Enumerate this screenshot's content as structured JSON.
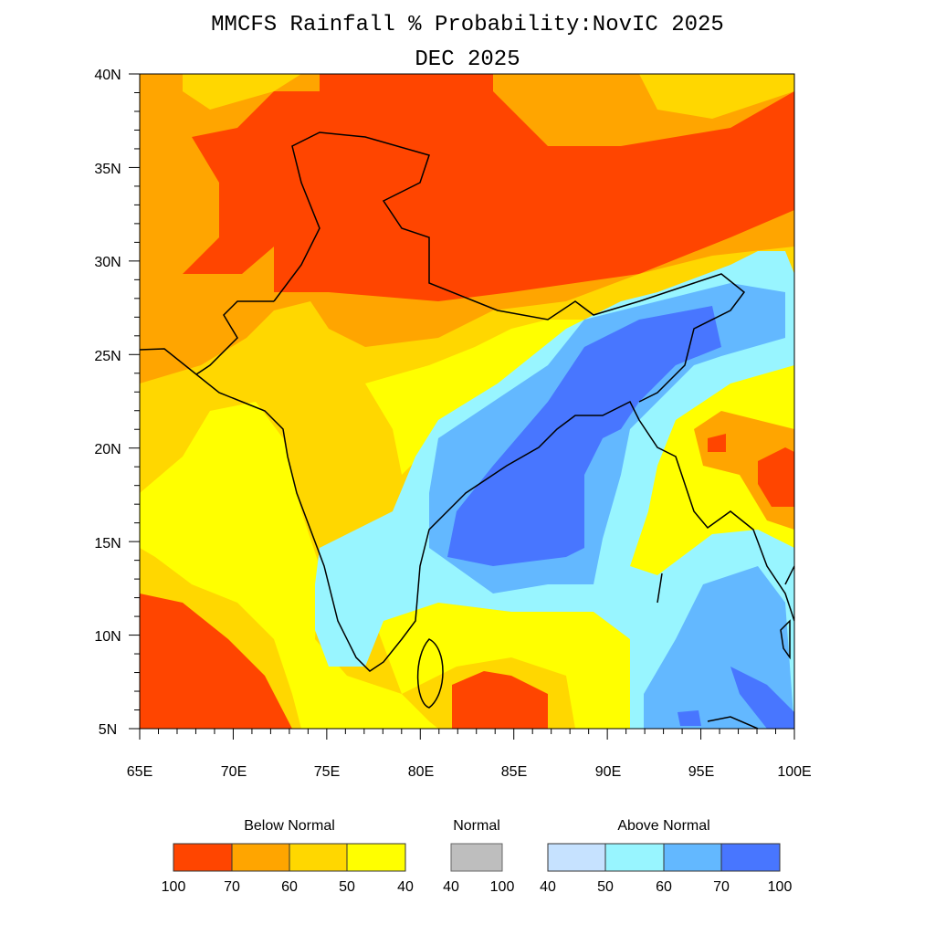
{
  "title": "MMCFS Rainfall % Probability:NovIC 2025",
  "subtitle": "DEC 2025",
  "map": {
    "region": "India and surroundings",
    "lon_range": [
      65,
      100
    ],
    "lat_range": [
      5,
      40
    ],
    "x_ticks": [
      "65E",
      "70E",
      "75E",
      "80E",
      "85E",
      "90E",
      "95E",
      "100E"
    ],
    "y_ticks": [
      "40N",
      "35N",
      "30N",
      "25N",
      "20N",
      "15N",
      "10N",
      "5N"
    ]
  },
  "legend": {
    "below": {
      "label": "Below Normal",
      "ticks": [
        "100",
        "70",
        "60",
        "50",
        "40"
      ],
      "colors": [
        "#FF4500",
        "#FFA500",
        "#FFD700",
        "#FFFF00"
      ]
    },
    "normal": {
      "label": "Normal",
      "ticks": [
        "40",
        "100"
      ],
      "colors": [
        "#BEBEBE"
      ]
    },
    "above": {
      "label": "Above Normal",
      "ticks": [
        "40",
        "50",
        "60",
        "70",
        "100"
      ],
      "colors": [
        "#C6E2FF",
        "#98F5FF",
        "#63B8FF",
        "#4876FF"
      ]
    }
  }
}
